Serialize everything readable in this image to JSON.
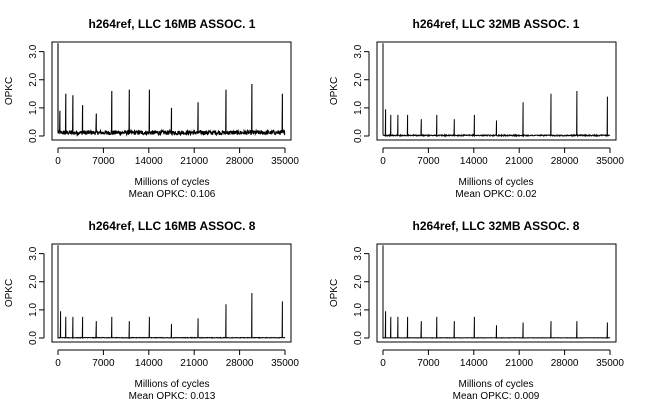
{
  "chart_data": [
    {
      "type": "line",
      "title": "h264ref, LLC 16MB ASSOC. 1",
      "xlabel": "Millions of cycles",
      "ylabel": "OPKC",
      "annotation": "Mean OPKC: 0.106",
      "xlim": [
        0,
        35000
      ],
      "ylim": [
        0,
        3.2
      ],
      "xticks": [
        0,
        7000,
        14000,
        21000,
        28000,
        35000
      ],
      "yticks": [
        0.0,
        1.0,
        2.0,
        3.0
      ],
      "ytick_labels": [
        "0.0",
        "1.0",
        "2.0",
        "3.0"
      ],
      "baseline": 0.12,
      "baseline_noise": 0.08,
      "spikes": [
        [
          0,
          3.3
        ],
        [
          300,
          0.9
        ],
        [
          1200,
          1.5
        ],
        [
          2300,
          1.45
        ],
        [
          3800,
          1.1
        ],
        [
          5900,
          0.8
        ],
        [
          8300,
          1.6
        ],
        [
          11000,
          1.65
        ],
        [
          14100,
          1.65
        ],
        [
          17500,
          1.0
        ],
        [
          21600,
          1.2
        ],
        [
          25900,
          1.65
        ],
        [
          29900,
          1.85
        ],
        [
          34600,
          1.5
        ]
      ],
      "grid": false,
      "legend": "none"
    },
    {
      "type": "line",
      "title": "h264ref, LLC 32MB ASSOC. 1",
      "xlabel": "Millions of cycles",
      "ylabel": "OPKC",
      "annotation": "Mean OPKC: 0.02",
      "xlim": [
        0,
        35000
      ],
      "ylim": [
        0,
        3.2
      ],
      "xticks": [
        0,
        7000,
        14000,
        21000,
        28000,
        35000
      ],
      "yticks": [
        0.0,
        1.0,
        2.0,
        3.0
      ],
      "ytick_labels": [
        "0.0",
        "1.0",
        "2.0",
        "3.0"
      ],
      "baseline": 0.02,
      "baseline_noise": 0.02,
      "spikes": [
        [
          0,
          3.3
        ],
        [
          400,
          0.95
        ],
        [
          1200,
          0.75
        ],
        [
          2300,
          0.75
        ],
        [
          3800,
          0.75
        ],
        [
          5900,
          0.6
        ],
        [
          8300,
          0.75
        ],
        [
          11000,
          0.6
        ],
        [
          14100,
          0.75
        ],
        [
          17500,
          0.55
        ],
        [
          21600,
          1.2
        ],
        [
          25900,
          1.5
        ],
        [
          29900,
          1.6
        ],
        [
          34600,
          1.4
        ]
      ],
      "grid": false,
      "legend": "none"
    },
    {
      "type": "line",
      "title": "h264ref, LLC 16MB ASSOC. 8",
      "xlabel": "Millions of cycles",
      "ylabel": "OPKC",
      "annotation": "Mean OPKC: 0.013",
      "xlim": [
        0,
        35000
      ],
      "ylim": [
        0,
        3.2
      ],
      "xticks": [
        0,
        7000,
        14000,
        21000,
        28000,
        35000
      ],
      "yticks": [
        0.0,
        1.0,
        2.0,
        3.0
      ],
      "ytick_labels": [
        "0.0",
        "1.0",
        "2.0",
        "3.0"
      ],
      "baseline": 0.01,
      "baseline_noise": 0.01,
      "spikes": [
        [
          0,
          3.3
        ],
        [
          400,
          0.95
        ],
        [
          1200,
          0.75
        ],
        [
          2300,
          0.75
        ],
        [
          3800,
          0.75
        ],
        [
          5900,
          0.6
        ],
        [
          8300,
          0.75
        ],
        [
          11000,
          0.6
        ],
        [
          14100,
          0.75
        ],
        [
          17500,
          0.5
        ],
        [
          21600,
          0.7
        ],
        [
          25900,
          1.2
        ],
        [
          29900,
          1.6
        ],
        [
          34600,
          1.3
        ]
      ],
      "grid": false,
      "legend": "none"
    },
    {
      "type": "line",
      "title": "h264ref, LLC 32MB ASSOC. 8",
      "xlabel": "Millions of cycles",
      "ylabel": "OPKC",
      "annotation": "Mean OPKC: 0.009",
      "xlim": [
        0,
        35000
      ],
      "ylim": [
        0,
        3.2
      ],
      "xticks": [
        0,
        7000,
        14000,
        21000,
        28000,
        35000
      ],
      "yticks": [
        0.0,
        1.0,
        2.0,
        3.0
      ],
      "ytick_labels": [
        "0.0",
        "1.0",
        "2.0",
        "3.0"
      ],
      "baseline": 0.005,
      "baseline_noise": 0.005,
      "spikes": [
        [
          0,
          3.3
        ],
        [
          400,
          0.95
        ],
        [
          1200,
          0.75
        ],
        [
          2300,
          0.75
        ],
        [
          3800,
          0.75
        ],
        [
          5900,
          0.6
        ],
        [
          8300,
          0.75
        ],
        [
          11000,
          0.6
        ],
        [
          14100,
          0.75
        ],
        [
          17500,
          0.45
        ],
        [
          21600,
          0.55
        ],
        [
          25900,
          0.6
        ],
        [
          29900,
          0.6
        ],
        [
          34600,
          0.55
        ]
      ],
      "grid": false,
      "legend": "none"
    }
  ]
}
